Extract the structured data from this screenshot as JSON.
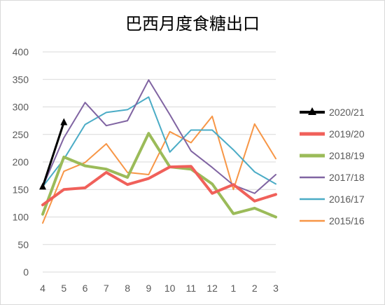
{
  "chart_data": {
    "type": "line",
    "title": "巴西月度食糖出口",
    "xlabel": "",
    "ylabel": "",
    "categories": [
      "4",
      "5",
      "6",
      "7",
      "8",
      "9",
      "10",
      "11",
      "12",
      "1",
      "2",
      "3"
    ],
    "ylim": [
      0,
      400
    ],
    "yticks": [
      "0",
      "50",
      "100",
      "150",
      "200",
      "250",
      "300",
      "350",
      "400"
    ],
    "grid": true,
    "legend_position": "right",
    "series": [
      {
        "name": "2020/21",
        "color": "#000000",
        "marker": "triangle",
        "values": [
          155,
          272,
          null,
          null,
          null,
          null,
          null,
          null,
          null,
          null,
          null,
          null
        ]
      },
      {
        "name": "2019/20",
        "color": "#f0605a",
        "values": [
          122,
          150,
          153,
          181,
          159,
          170,
          191,
          192,
          143,
          159,
          129,
          141
        ]
      },
      {
        "name": "2018/19",
        "color": "#9bbb59",
        "values": [
          105,
          209,
          193,
          187,
          172,
          252,
          191,
          187,
          160,
          106,
          116,
          100
        ]
      },
      {
        "name": "2017/18",
        "color": "#8064a2",
        "values": [
          155,
          244,
          308,
          266,
          275,
          349,
          286,
          220,
          190,
          158,
          143,
          177
        ]
      },
      {
        "name": "2016/17",
        "color": "#4bacc6",
        "values": [
          155,
          205,
          268,
          290,
          295,
          318,
          218,
          258,
          258,
          222,
          182,
          160
        ]
      },
      {
        "name": "2015/16",
        "color": "#f79646",
        "values": [
          89,
          183,
          199,
          233,
          181,
          177,
          255,
          235,
          283,
          150,
          269,
          206
        ]
      }
    ]
  }
}
